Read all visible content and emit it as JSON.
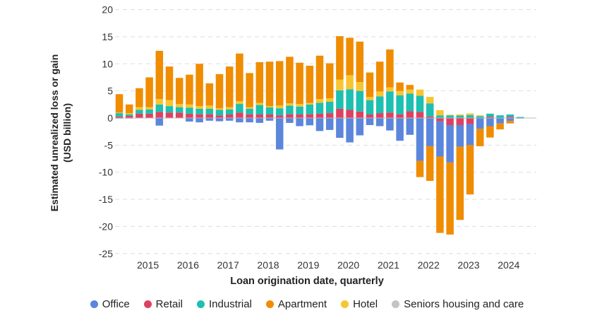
{
  "chart_data": {
    "type": "bar",
    "stacked": true,
    "title": "",
    "xlabel": "Loan origination date, quarterly",
    "ylabel_lines": [
      "Estimated unrealized loss or gain",
      "(USD billion)"
    ],
    "ylim": [
      -25,
      20
    ],
    "yticks": [
      20,
      15,
      10,
      5,
      0,
      -5,
      -10,
      -15,
      -20,
      -25
    ],
    "xtick_labels": [
      "2015",
      "2016",
      "2017",
      "2018",
      "2019",
      "2020",
      "2021",
      "2022",
      "2023",
      "2024"
    ],
    "grid": "horizontal dashed",
    "legend_position": "bottom",
    "categories": [
      "2014 Q2",
      "2014 Q3",
      "2014 Q4",
      "2015 Q1",
      "2015 Q2",
      "2015 Q3",
      "2015 Q4",
      "2016 Q1",
      "2016 Q2",
      "2016 Q3",
      "2016 Q4",
      "2017 Q1",
      "2017 Q2",
      "2017 Q3",
      "2017 Q4",
      "2018 Q1",
      "2018 Q2",
      "2018 Q3",
      "2018 Q4",
      "2019 Q1",
      "2019 Q2",
      "2019 Q3",
      "2019 Q4",
      "2020 Q1",
      "2020 Q2",
      "2020 Q3",
      "2020 Q4",
      "2021 Q1",
      "2021 Q2",
      "2021 Q3",
      "2021 Q4",
      "2022 Q1",
      "2022 Q2",
      "2022 Q3",
      "2022 Q4",
      "2023 Q1",
      "2023 Q2",
      "2023 Q3",
      "2023 Q4",
      "2024 Q1",
      "2024 Q2",
      "2024 Q3"
    ],
    "series": [
      {
        "name": "Office",
        "color": "#5b86db",
        "values": [
          -0.1,
          -0.1,
          0,
          0,
          -1.4,
          0,
          0,
          -0.65,
          -0.8,
          -0.5,
          -0.6,
          -0.5,
          -0.8,
          -0.8,
          -0.9,
          -0.5,
          -5.8,
          -0.9,
          -1.5,
          -1.35,
          -2.4,
          -2.2,
          -3.65,
          -4.5,
          -3.2,
          -1.3,
          -1.5,
          -2.3,
          -4.2,
          -3.1,
          -7.9,
          -5.2,
          -6.5,
          -6.9,
          -4.0,
          -3.9,
          -2.0,
          -1.5,
          -1.0,
          -0.55,
          -0.1,
          0
        ]
      },
      {
        "name": "Retail",
        "color": "#e0405f",
        "values": [
          0.3,
          0.4,
          0.8,
          0.8,
          1.1,
          1.0,
          1.0,
          0.8,
          0.7,
          0.7,
          0.5,
          0.65,
          1.0,
          0.7,
          0.65,
          0.65,
          0.5,
          0.7,
          0.65,
          0.7,
          0.8,
          0.9,
          1.7,
          1.5,
          1.2,
          0.65,
          0.9,
          1.0,
          0.7,
          1.25,
          1.1,
          0.3,
          -0.6,
          -1.3,
          -1.3,
          -1.1,
          0,
          0.25,
          0,
          0.25,
          0,
          0
        ]
      },
      {
        "name": "Industrial",
        "color": "#1dbfb0",
        "values": [
          0.6,
          0.3,
          0.7,
          0.8,
          1.4,
          1.2,
          1.0,
          1.1,
          1.0,
          1.0,
          1.0,
          0.95,
          1.6,
          1.0,
          1.75,
          1.3,
          1.3,
          1.6,
          1.45,
          1.8,
          2.0,
          2.1,
          3.4,
          3.8,
          3.8,
          2.65,
          3.1,
          3.9,
          3.5,
          3.25,
          3.0,
          2.4,
          0.5,
          0.5,
          0.45,
          0.55,
          0.35,
          0.55,
          0.5,
          0.4,
          0.2,
          0.05
        ]
      },
      {
        "name": "Apartment",
        "color": "#f08c00",
        "values": [
          3.4,
          1.6,
          3.5,
          5.5,
          8.9,
          6.2,
          4.8,
          5.5,
          7.8,
          4.1,
          6.3,
          7.5,
          8.8,
          6.3,
          7.5,
          8.2,
          8.2,
          8.6,
          7.6,
          6.85,
          8.0,
          6.45,
          8.0,
          6.9,
          7.45,
          4.5,
          5.5,
          7.0,
          1.55,
          0.85,
          -3.0,
          -6.4,
          -14.1,
          -13.3,
          -13.5,
          -9.1,
          -3.2,
          -2.1,
          -1.1,
          -0.45,
          0,
          0
        ]
      },
      {
        "name": "Hotel",
        "color": "#f7c531",
        "values": [
          0.1,
          0.2,
          0.5,
          0.4,
          1.0,
          1.1,
          0.6,
          0.6,
          0.5,
          0.6,
          0.3,
          0.4,
          0.5,
          0.3,
          0.4,
          0.25,
          0.5,
          0.4,
          0.5,
          0.3,
          0.7,
          0.65,
          2.0,
          2.6,
          1.65,
          0.6,
          0.9,
          0.75,
          0.8,
          0.75,
          1.15,
          1.2,
          0.95,
          0.1,
          0.2,
          0.3,
          0.15,
          0,
          0,
          0,
          0,
          0
        ]
      },
      {
        "name": "Seniors housing and care",
        "color": "#c4c4c4",
        "values": [
          0,
          0,
          0,
          0,
          0,
          0,
          0,
          0,
          0,
          0,
          0,
          0,
          0,
          0,
          0,
          0,
          0,
          0,
          0,
          0,
          0,
          0,
          0,
          0,
          0,
          0,
          0,
          0,
          0,
          0,
          0,
          0,
          0,
          0,
          0,
          0,
          0,
          0,
          0,
          0,
          0,
          0
        ]
      }
    ]
  }
}
